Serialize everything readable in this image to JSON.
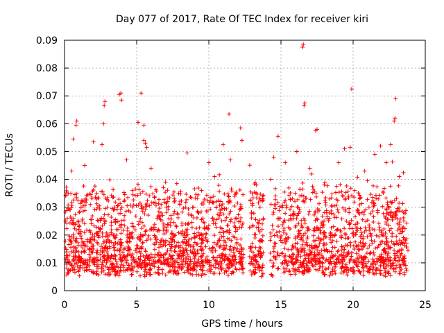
{
  "chart_data": {
    "type": "scatter",
    "title": "Day 077 of 2017, Rate Of TEC Index for receiver kiri",
    "xlabel": "GPS time / hours",
    "ylabel": "ROTI / TECUs",
    "xlim": [
      0,
      25
    ],
    "ylim": [
      0,
      0.09
    ],
    "x_ticks": [
      0,
      5,
      10,
      15,
      20,
      25
    ],
    "x_tick_labels": [
      "0",
      "5",
      "10",
      "15",
      "20",
      "25"
    ],
    "y_ticks": [
      0,
      0.01,
      0.02,
      0.03,
      0.04,
      0.05,
      0.06,
      0.07,
      0.08,
      0.09
    ],
    "y_tick_labels": [
      "0",
      "0.01",
      "0.02",
      "0.03",
      "0.04",
      "0.05",
      "0.06",
      "0.07",
      "0.08",
      "0.09"
    ],
    "grid": true,
    "marker": "+",
    "marker_color": "#ff0000",
    "data_gaps_hours": [
      [
        12.4,
        12.8
      ],
      [
        13.8,
        14.25
      ]
    ],
    "series": [
      {
        "name": "ROTI",
        "color": "#ff0000",
        "points": [
          [
            0.2,
            0.0125
          ],
          [
            0.4,
            0.018
          ],
          [
            0.5,
            0.043
          ],
          [
            0.6,
            0.0545
          ],
          [
            0.8,
            0.0595
          ],
          [
            0.85,
            0.061
          ],
          [
            1.0,
            0.022
          ],
          [
            1.4,
            0.045
          ],
          [
            1.7,
            0.009
          ],
          [
            2.0,
            0.0535
          ],
          [
            2.3,
            0.03
          ],
          [
            2.6,
            0.0525
          ],
          [
            2.7,
            0.06
          ],
          [
            2.75,
            0.0665
          ],
          [
            2.8,
            0.068
          ],
          [
            3.3,
            0.02
          ],
          [
            3.8,
            0.0705
          ],
          [
            3.9,
            0.071
          ],
          [
            3.95,
            0.0685
          ],
          [
            4.3,
            0.047
          ],
          [
            4.7,
            0.036
          ],
          [
            5.1,
            0.0605
          ],
          [
            5.3,
            0.071
          ],
          [
            5.5,
            0.0595
          ],
          [
            5.5,
            0.054
          ],
          [
            5.6,
            0.053
          ],
          [
            5.7,
            0.0515
          ],
          [
            6.0,
            0.044
          ],
          [
            6.5,
            0.022
          ],
          [
            7.0,
            0.039
          ],
          [
            7.5,
            0.011
          ],
          [
            8.0,
            0.031
          ],
          [
            8.5,
            0.0495
          ],
          [
            9.0,
            0.014
          ],
          [
            9.5,
            0.036
          ],
          [
            10.0,
            0.046
          ],
          [
            10.4,
            0.041
          ],
          [
            10.8,
            0.028
          ],
          [
            11.0,
            0.0525
          ],
          [
            11.4,
            0.0635
          ],
          [
            11.5,
            0.047
          ],
          [
            11.9,
            0.035
          ],
          [
            12.2,
            0.0585
          ],
          [
            12.3,
            0.054
          ],
          [
            13.0,
            0.017
          ],
          [
            13.3,
            0.038
          ],
          [
            13.7,
            0.024
          ],
          [
            14.3,
            0.04
          ],
          [
            14.5,
            0.048
          ],
          [
            14.8,
            0.0555
          ],
          [
            15.3,
            0.046
          ],
          [
            15.8,
            0.033
          ],
          [
            16.1,
            0.05
          ],
          [
            16.5,
            0.0875
          ],
          [
            16.55,
            0.0885
          ],
          [
            16.6,
            0.0665
          ],
          [
            16.65,
            0.0675
          ],
          [
            17.0,
            0.044
          ],
          [
            17.4,
            0.0575
          ],
          [
            17.5,
            0.058
          ],
          [
            18.0,
            0.038
          ],
          [
            18.5,
            0.014
          ],
          [
            19.0,
            0.046
          ],
          [
            19.4,
            0.051
          ],
          [
            19.8,
            0.0515
          ],
          [
            19.9,
            0.0725
          ],
          [
            20.3,
            0.029
          ],
          [
            20.8,
            0.043
          ],
          [
            21.2,
            0.02
          ],
          [
            21.5,
            0.049
          ],
          [
            21.9,
            0.052
          ],
          [
            22.3,
            0.046
          ],
          [
            22.6,
            0.0525
          ],
          [
            22.85,
            0.061
          ],
          [
            22.9,
            0.062
          ],
          [
            22.95,
            0.069
          ],
          [
            23.2,
            0.041
          ],
          [
            23.5,
            0.028
          ],
          [
            23.8,
            0.0145
          ]
        ]
      }
    ]
  }
}
